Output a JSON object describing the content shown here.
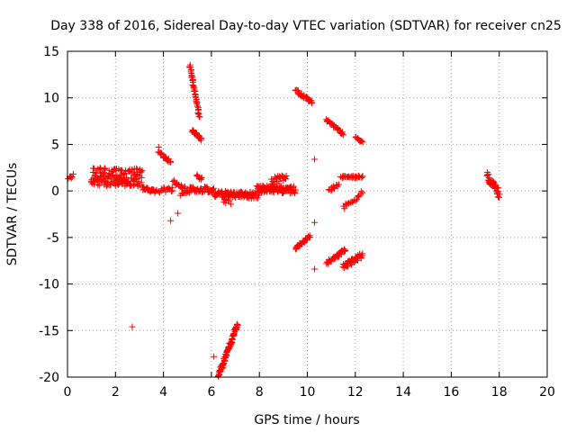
{
  "chart_data": {
    "type": "scatter",
    "title": "Day 338 of 2016, Sidereal Day-to-day VTEC variation (SDTVAR) for receiver cn25",
    "xlabel": "GPS time / hours",
    "ylabel": "SDTVAR / TECUs",
    "xlim": [
      0,
      20
    ],
    "ylim": [
      -20,
      15
    ],
    "xticks": [
      "0",
      "2",
      "4",
      "6",
      "8",
      "10",
      "12",
      "14",
      "16",
      "18",
      "20"
    ],
    "yticks": [
      "15",
      "10",
      "5",
      "0",
      "-5",
      "-10",
      "-15",
      "-20"
    ],
    "grid": true,
    "marker": "+",
    "color": "#ff0000",
    "segments": [
      {
        "x0": 0.05,
        "x1": 0.22,
        "y0": 1.2,
        "y1": 1.8,
        "jitter": 0.3,
        "n": 8
      },
      {
        "x0": 1.0,
        "x1": 3.1,
        "y0": 1.5,
        "y1": 1.4,
        "jitter": 1.0,
        "n": 170
      },
      {
        "x0": 3.1,
        "x1": 3.7,
        "y0": 0.3,
        "y1": -0.1,
        "jitter": 0.2,
        "n": 25
      },
      {
        "x0": 3.8,
        "x1": 4.3,
        "y0": 4.2,
        "y1": 3.1,
        "jitter": 0.2,
        "n": 20
      },
      {
        "x0": 3.8,
        "x1": 4.4,
        "y0": 0.1,
        "y1": 0.1,
        "jitter": 0.3,
        "n": 15
      },
      {
        "x0": 4.4,
        "x1": 5.1,
        "y0": 1.0,
        "y1": 0.0,
        "jitter": 0.25,
        "n": 22
      },
      {
        "x0": 4.7,
        "x1": 5.0,
        "y0": -0.4,
        "y1": -0.1,
        "jitter": 0.15,
        "n": 8
      },
      {
        "x0": 5.1,
        "x1": 5.5,
        "y0": 13.5,
        "y1": 8.0,
        "jitter": 0.15,
        "n": 45
      },
      {
        "x0": 5.2,
        "x1": 5.6,
        "y0": 6.5,
        "y1": 5.5,
        "jitter": 0.15,
        "n": 25
      },
      {
        "x0": 5.1,
        "x1": 6.1,
        "y0": 0.2,
        "y1": 0.1,
        "jitter": 0.3,
        "n": 45
      },
      {
        "x0": 5.4,
        "x1": 5.6,
        "y0": 1.6,
        "y1": 1.3,
        "jitter": 0.2,
        "n": 8
      },
      {
        "x0": 6.3,
        "x1": 7.1,
        "y0": -19.8,
        "y1": -14.3,
        "jitter": 0.25,
        "n": 90
      },
      {
        "x0": 6.1,
        "x1": 8.0,
        "y0": -0.3,
        "y1": -0.5,
        "jitter": 0.35,
        "n": 110
      },
      {
        "x0": 6.5,
        "x1": 6.8,
        "y0": -1.0,
        "y1": -1.3,
        "jitter": 0.2,
        "n": 6
      },
      {
        "x0": 7.9,
        "x1": 9.5,
        "y0": 0.2,
        "y1": 0.1,
        "jitter": 0.4,
        "n": 100
      },
      {
        "x0": 8.5,
        "x1": 9.1,
        "y0": 1.0,
        "y1": 1.4,
        "jitter": 0.4,
        "n": 25
      },
      {
        "x0": 9.5,
        "x1": 10.2,
        "y0": 10.8,
        "y1": 9.5,
        "jitter": 0.15,
        "n": 30
      },
      {
        "x0": 9.5,
        "x1": 10.1,
        "y0": -6.2,
        "y1": -4.9,
        "jitter": 0.15,
        "n": 30
      },
      {
        "x0": 10.8,
        "x1": 11.5,
        "y0": 7.6,
        "y1": 6.1,
        "jitter": 0.15,
        "n": 30
      },
      {
        "x0": 10.8,
        "x1": 11.6,
        "y0": -7.8,
        "y1": -6.3,
        "jitter": 0.2,
        "n": 35
      },
      {
        "x0": 10.9,
        "x1": 11.3,
        "y0": 0.1,
        "y1": 0.6,
        "jitter": 0.2,
        "n": 12
      },
      {
        "x0": 11.5,
        "x1": 12.3,
        "y0": -8.2,
        "y1": -6.8,
        "jitter": 0.3,
        "n": 40
      },
      {
        "x0": 11.5,
        "x1": 12.3,
        "y0": -1.8,
        "y1": -0.2,
        "jitter": 0.3,
        "n": 20
      },
      {
        "x0": 11.4,
        "x1": 12.3,
        "y0": 1.5,
        "y1": 1.5,
        "jitter": 0.12,
        "n": 30
      },
      {
        "x0": 12.0,
        "x1": 12.3,
        "y0": 5.8,
        "y1": 5.2,
        "jitter": 0.1,
        "n": 10
      },
      {
        "x0": 17.5,
        "x1": 18.0,
        "y0": 1.6,
        "y1": -0.3,
        "jitter": 0.45,
        "n": 40
      }
    ],
    "isolated_points": [
      [
        2.7,
        -14.6
      ],
      [
        3.8,
        4.7
      ],
      [
        4.3,
        -3.2
      ],
      [
        4.6,
        -2.4
      ],
      [
        6.1,
        -17.8
      ],
      [
        6.6,
        -0.9
      ],
      [
        10.3,
        3.4
      ],
      [
        10.3,
        -3.4
      ],
      [
        10.3,
        -8.4
      ],
      [
        6.6,
        -1.3
      ]
    ]
  }
}
